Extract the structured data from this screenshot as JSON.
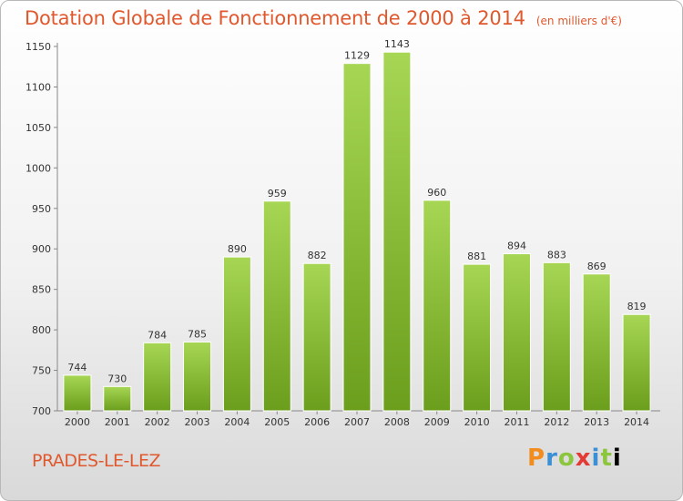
{
  "header": {
    "title": "Dotation Globale de Fonctionnement de 2000 à 2014",
    "subtitle": "(en milliers d'€)"
  },
  "footer": {
    "city": "PRADES-LE-LEZ",
    "logo_text": "Proxiti"
  },
  "colors": {
    "title": "#e0582d",
    "bar_top": "#a6d654",
    "bar_bottom": "#6b9e1c"
  },
  "chart_data": {
    "type": "bar",
    "title": "Dotation Globale de Fonctionnement de 2000 à 2014",
    "subtitle": "(en milliers d'€)",
    "xlabel": "",
    "ylabel": "",
    "categories": [
      "2000",
      "2001",
      "2002",
      "2003",
      "2004",
      "2005",
      "2006",
      "2007",
      "2008",
      "2009",
      "2010",
      "2011",
      "2012",
      "2013",
      "2014"
    ],
    "values": [
      744,
      730,
      784,
      785,
      890,
      959,
      882,
      1129,
      1143,
      960,
      881,
      894,
      883,
      869,
      819
    ],
    "ylim": [
      700,
      1150
    ],
    "yticks": [
      700,
      750,
      800,
      850,
      900,
      950,
      1000,
      1050,
      1100,
      1150
    ],
    "grid": false,
    "legend": "none"
  }
}
